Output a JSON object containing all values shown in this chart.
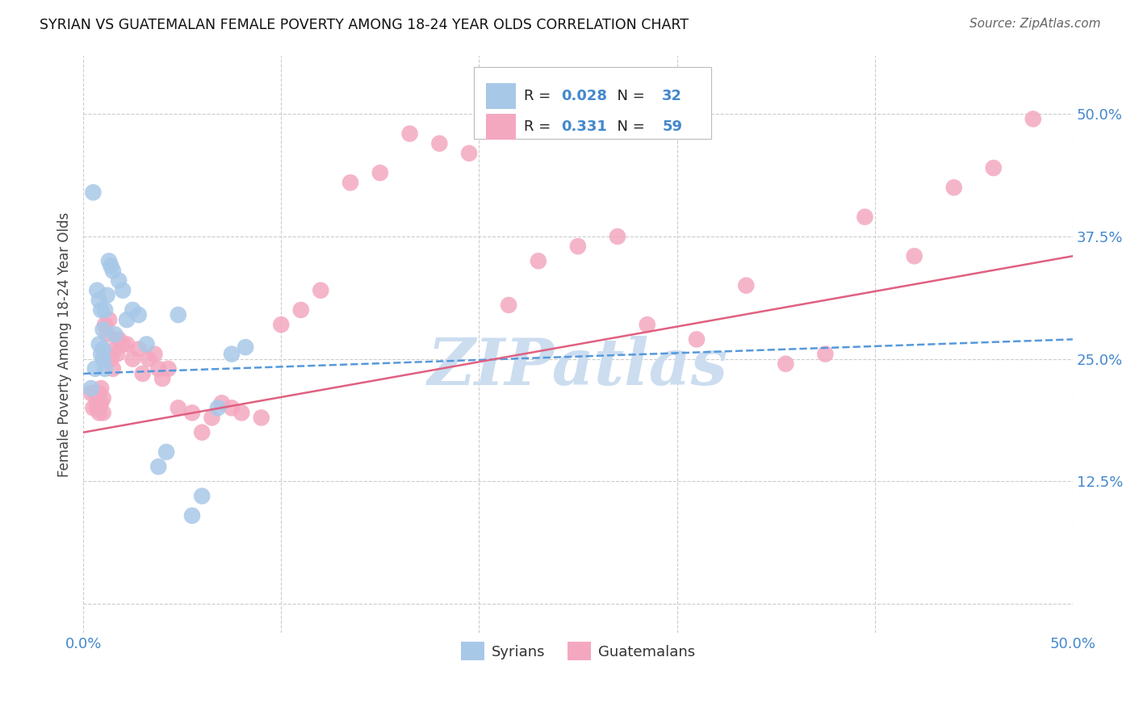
{
  "title": "SYRIAN VS GUATEMALAN FEMALE POVERTY AMONG 18-24 YEAR OLDS CORRELATION CHART",
  "source": "Source: ZipAtlas.com",
  "ylabel": "Female Poverty Among 18-24 Year Olds",
  "xlim": [
    0.0,
    0.5
  ],
  "ylim": [
    -0.03,
    0.56
  ],
  "syrian_R": 0.028,
  "syrian_N": 32,
  "guatemalan_R": 0.331,
  "guatemalan_N": 59,
  "syrian_color": "#a8c8e8",
  "guatemalan_color": "#f4a8c0",
  "syrian_line_color": "#5599dd",
  "guatemalan_line_color": "#e06080",
  "watermark": "ZIPatlas",
  "watermark_color": "#ccddf0",
  "legend_syrian_label": "Syrians",
  "legend_guatemalan_label": "Guatemalans",
  "syrian_line": [
    0.235,
    0.27
  ],
  "guatemalan_line": [
    0.175,
    0.355
  ],
  "syrian_x": [
    0.004,
    0.005,
    0.006,
    0.007,
    0.008,
    0.008,
    0.009,
    0.009,
    0.01,
    0.01,
    0.01,
    0.011,
    0.011,
    0.012,
    0.013,
    0.014,
    0.015,
    0.016,
    0.018,
    0.02,
    0.022,
    0.025,
    0.028,
    0.032,
    0.038,
    0.042,
    0.048,
    0.055,
    0.06,
    0.068,
    0.075,
    0.082
  ],
  "syrian_y": [
    0.22,
    0.42,
    0.24,
    0.32,
    0.31,
    0.265,
    0.255,
    0.3,
    0.25,
    0.26,
    0.28,
    0.3,
    0.24,
    0.315,
    0.35,
    0.345,
    0.34,
    0.275,
    0.33,
    0.32,
    0.29,
    0.3,
    0.295,
    0.265,
    0.14,
    0.155,
    0.295,
    0.09,
    0.11,
    0.2,
    0.255,
    0.262
  ],
  "guatemalan_x": [
    0.004,
    0.005,
    0.006,
    0.007,
    0.007,
    0.008,
    0.008,
    0.009,
    0.009,
    0.01,
    0.01,
    0.011,
    0.012,
    0.013,
    0.014,
    0.015,
    0.016,
    0.017,
    0.018,
    0.02,
    0.022,
    0.025,
    0.028,
    0.03,
    0.033,
    0.036,
    0.038,
    0.04,
    0.043,
    0.048,
    0.055,
    0.06,
    0.065,
    0.07,
    0.075,
    0.08,
    0.09,
    0.1,
    0.11,
    0.12,
    0.135,
    0.15,
    0.165,
    0.18,
    0.195,
    0.215,
    0.23,
    0.25,
    0.27,
    0.285,
    0.31,
    0.335,
    0.355,
    0.375,
    0.395,
    0.42,
    0.44,
    0.46,
    0.48
  ],
  "guatemalan_y": [
    0.215,
    0.2,
    0.215,
    0.205,
    0.2,
    0.215,
    0.195,
    0.22,
    0.205,
    0.21,
    0.195,
    0.285,
    0.275,
    0.29,
    0.25,
    0.24,
    0.26,
    0.255,
    0.27,
    0.265,
    0.265,
    0.25,
    0.26,
    0.235,
    0.25,
    0.255,
    0.24,
    0.23,
    0.24,
    0.2,
    0.195,
    0.175,
    0.19,
    0.205,
    0.2,
    0.195,
    0.19,
    0.285,
    0.3,
    0.32,
    0.43,
    0.44,
    0.48,
    0.47,
    0.46,
    0.305,
    0.35,
    0.365,
    0.375,
    0.285,
    0.27,
    0.325,
    0.245,
    0.255,
    0.395,
    0.355,
    0.425,
    0.445,
    0.495
  ],
  "yticks": [
    0.0,
    0.125,
    0.25,
    0.375,
    0.5
  ],
  "ytick_labels": [
    "",
    "12.5%",
    "25.0%",
    "37.5%",
    "50.0%"
  ],
  "xtick_minor": [
    0.1,
    0.2,
    0.3,
    0.4
  ]
}
